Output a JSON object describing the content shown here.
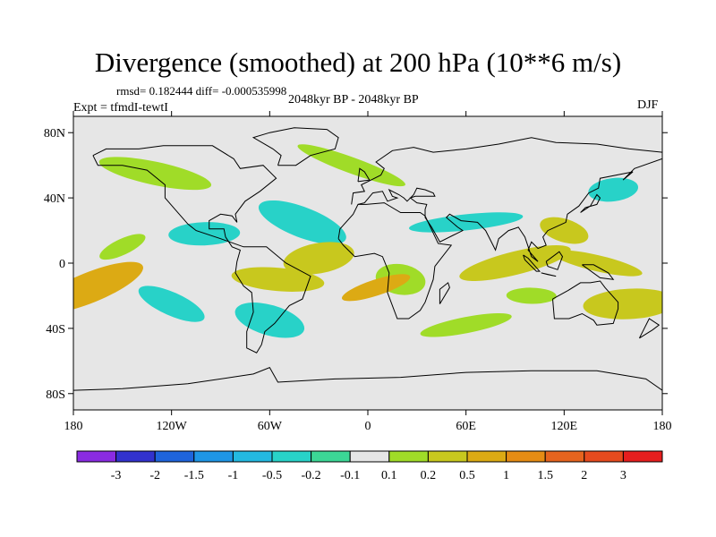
{
  "chart_data": {
    "type": "contour-map",
    "title": "Divergence (smoothed) at 200 hPa (10**6 m/s)",
    "stats": "rmsd= 0.182444 diff= -0.000535998",
    "left_label": "Expt = tfmdI-tewtI",
    "center_label": "2048kyr BP - 2048kyr BP",
    "right_label": "DJF",
    "lon_range": [
      -180,
      180
    ],
    "lat_range": [
      -90,
      90
    ],
    "x_ticks": [
      {
        "value": -180,
        "label": "180"
      },
      {
        "value": -120,
        "label": "120W"
      },
      {
        "value": -60,
        "label": "60W"
      },
      {
        "value": 0,
        "label": "0"
      },
      {
        "value": 60,
        "label": "60E"
      },
      {
        "value": 120,
        "label": "120E"
      },
      {
        "value": 180,
        "label": "180"
      }
    ],
    "y_ticks": [
      {
        "value": 80,
        "label": "80N"
      },
      {
        "value": 40,
        "label": "40N"
      },
      {
        "value": 0,
        "label": "0"
      },
      {
        "value": -40,
        "label": "40S"
      },
      {
        "value": -80,
        "label": "80S"
      }
    ],
    "colorbar": {
      "colors": [
        "#8a2be2",
        "#3232cd",
        "#1e64dc",
        "#1e96e6",
        "#23b9e1",
        "#28d2c8",
        "#3cd796",
        "#e6e6e6",
        "#a0dc28",
        "#c8c81e",
        "#dcaa14",
        "#e68c14",
        "#e6641e",
        "#e64b1e",
        "#e61e1e"
      ],
      "labels": [
        "-3",
        "-2",
        "-1.5",
        "-1",
        "-0.5",
        "-0.2",
        "-0.1",
        "0.1",
        "0.2",
        "0.5",
        "1",
        "1.5",
        "2",
        "3"
      ]
    },
    "fields": [
      {
        "lon": -150,
        "lat": 10,
        "value": 0.15
      },
      {
        "lon": -100,
        "lat": 18,
        "value": -0.2
      },
      {
        "lon": -40,
        "lat": 25,
        "value": -0.3
      },
      {
        "lon": 60,
        "lat": 25,
        "value": -0.3
      },
      {
        "lon": 120,
        "lat": 20,
        "value": 0.3
      },
      {
        "lon": -30,
        "lat": 3,
        "value": 0.5
      },
      {
        "lon": 140,
        "lat": 0,
        "value": 0.5
      },
      {
        "lon": 90,
        "lat": 0,
        "value": 0.3
      },
      {
        "lon": 20,
        "lat": -10,
        "value": 0.2
      },
      {
        "lon": 5,
        "lat": -15,
        "value": 1.0
      },
      {
        "lon": -55,
        "lat": -10,
        "value": 0.5
      },
      {
        "lon": -170,
        "lat": -15,
        "value": 1.0
      },
      {
        "lon": 100,
        "lat": -20,
        "value": 0.2
      },
      {
        "lon": -120,
        "lat": -25,
        "value": -0.3
      },
      {
        "lon": 160,
        "lat": -25,
        "value": 0.3
      },
      {
        "lon": -10,
        "lat": 60,
        "value": 0.2
      },
      {
        "lon": 150,
        "lat": 45,
        "value": -0.2
      },
      {
        "lon": -60,
        "lat": -35,
        "value": -0.2
      },
      {
        "lon": 60,
        "lat": -38,
        "value": 0.2
      },
      {
        "lon": -130,
        "lat": 55,
        "value": 0.15
      }
    ]
  }
}
